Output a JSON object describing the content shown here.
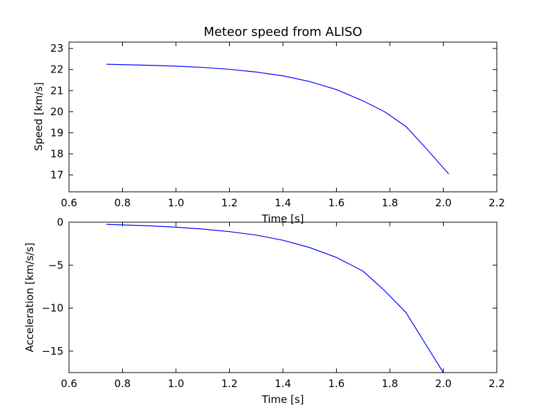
{
  "figure": {
    "background": "#ffffff",
    "line_color": "#0000ff"
  },
  "chart_data": [
    {
      "type": "line",
      "title": "Meteor speed from  ALISO",
      "xlabel": "Time [s]",
      "ylabel": "Speed [km/s]",
      "xlim": [
        0.6,
        2.2
      ],
      "ylim": [
        16.2,
        23.3
      ],
      "xticks": [
        "0.6",
        "0.8",
        "1.0",
        "1.2",
        "1.4",
        "1.6",
        "1.8",
        "2.0",
        "2.2"
      ],
      "yticks": [
        "17",
        "18",
        "19",
        "20",
        "21",
        "22",
        "23"
      ],
      "x": [
        0.74,
        0.9,
        1.0,
        1.1,
        1.2,
        1.3,
        1.4,
        1.5,
        1.6,
        1.7,
        1.78,
        1.86,
        1.94,
        2.02
      ],
      "y": [
        22.25,
        22.2,
        22.16,
        22.1,
        22.01,
        21.88,
        21.7,
        21.43,
        21.05,
        20.51,
        20.0,
        19.3,
        18.2,
        17.05
      ]
    },
    {
      "type": "line",
      "title": "",
      "xlabel": "Time [s]",
      "ylabel": "Acceleration [km/s/s]",
      "xlim": [
        0.6,
        2.2
      ],
      "ylim": [
        -17.5,
        0
      ],
      "xticks": [
        "0.6",
        "0.8",
        "1.0",
        "1.2",
        "1.4",
        "1.6",
        "1.8",
        "2.0",
        "2.2"
      ],
      "yticks": [
        "0",
        "−5",
        "−10",
        "−15"
      ],
      "x": [
        0.74,
        0.9,
        1.0,
        1.1,
        1.2,
        1.3,
        1.4,
        1.5,
        1.6,
        1.7,
        1.78,
        1.86,
        1.93,
        2.0
      ],
      "y": [
        -0.25,
        -0.42,
        -0.58,
        -0.8,
        -1.1,
        -1.5,
        -2.1,
        -2.95,
        -4.1,
        -5.7,
        -7.95,
        -10.5,
        -14.0,
        -17.5
      ]
    }
  ]
}
